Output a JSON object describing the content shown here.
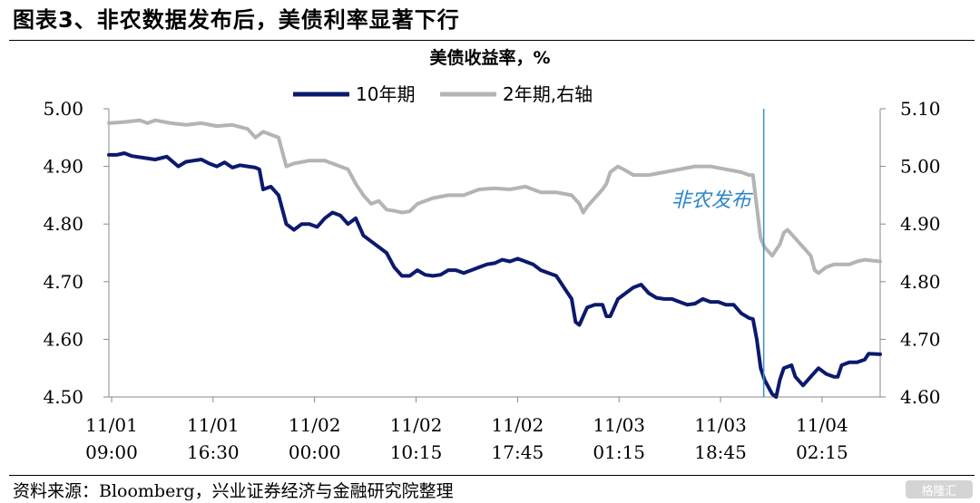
{
  "figure_title": "图表3、非农数据发布后，美债利率显著下行",
  "source_note": "资料来源：Bloomberg，兴业证券经济与金融研究院整理",
  "watermark": "格隆汇",
  "chart_data": {
    "type": "line",
    "title": "美债收益率，%",
    "x_ticks": [
      {
        "top": "11/01",
        "bottom": "09:00"
      },
      {
        "top": "11/01",
        "bottom": "16:30"
      },
      {
        "top": "11/02",
        "bottom": "00:00"
      },
      {
        "top": "11/02",
        "bottom": "10:15"
      },
      {
        "top": "11/02",
        "bottom": "17:45"
      },
      {
        "top": "11/03",
        "bottom": "01:15"
      },
      {
        "top": "11/03",
        "bottom": "18:45"
      },
      {
        "top": "11/04",
        "bottom": "02:15"
      }
    ],
    "y_left": {
      "ticks": [
        "4.50",
        "4.60",
        "4.70",
        "4.80",
        "4.90",
        "5.00"
      ],
      "lim": [
        4.5,
        5.0
      ]
    },
    "y_right": {
      "ticks": [
        "4.60",
        "4.70",
        "4.80",
        "4.90",
        "5.00",
        "5.10"
      ],
      "lim": [
        4.6,
        5.1
      ]
    },
    "annotation": {
      "text": "非农发布",
      "x_fraction": 0.849
    },
    "grid": false,
    "legend_position": "top-center",
    "series": [
      {
        "name": "10年期",
        "axis": "left",
        "color": "#0b1a6e",
        "points": [
          [
            0,
            4.92
          ],
          [
            0.01,
            4.92
          ],
          [
            0.02,
            4.923
          ],
          [
            0.03,
            4.918
          ],
          [
            0.045,
            4.915
          ],
          [
            0.06,
            4.912
          ],
          [
            0.075,
            4.917
          ],
          [
            0.09,
            4.9
          ],
          [
            0.1,
            4.908
          ],
          [
            0.11,
            4.91
          ],
          [
            0.12,
            4.912
          ],
          [
            0.13,
            4.905
          ],
          [
            0.14,
            4.9
          ],
          [
            0.15,
            4.907
          ],
          [
            0.16,
            4.898
          ],
          [
            0.17,
            4.902
          ],
          [
            0.18,
            4.9
          ],
          [
            0.19,
            4.898
          ],
          [
            0.195,
            4.895
          ],
          [
            0.2,
            4.86
          ],
          [
            0.21,
            4.865
          ],
          [
            0.22,
            4.85
          ],
          [
            0.23,
            4.8
          ],
          [
            0.24,
            4.79
          ],
          [
            0.25,
            4.8
          ],
          [
            0.26,
            4.8
          ],
          [
            0.27,
            4.795
          ],
          [
            0.28,
            4.81
          ],
          [
            0.29,
            4.82
          ],
          [
            0.3,
            4.815
          ],
          [
            0.31,
            4.8
          ],
          [
            0.32,
            4.81
          ],
          [
            0.33,
            4.78
          ],
          [
            0.34,
            4.77
          ],
          [
            0.35,
            4.76
          ],
          [
            0.36,
            4.75
          ],
          [
            0.37,
            4.725
          ],
          [
            0.38,
            4.71
          ],
          [
            0.39,
            4.71
          ],
          [
            0.4,
            4.72
          ],
          [
            0.41,
            4.712
          ],
          [
            0.42,
            4.71
          ],
          [
            0.43,
            4.712
          ],
          [
            0.44,
            4.72
          ],
          [
            0.45,
            4.72
          ],
          [
            0.46,
            4.715
          ],
          [
            0.47,
            4.72
          ],
          [
            0.48,
            4.725
          ],
          [
            0.49,
            4.73
          ],
          [
            0.5,
            4.732
          ],
          [
            0.51,
            4.738
          ],
          [
            0.52,
            4.735
          ],
          [
            0.53,
            4.74
          ],
          [
            0.54,
            4.735
          ],
          [
            0.55,
            4.73
          ],
          [
            0.56,
            4.72
          ],
          [
            0.57,
            4.715
          ],
          [
            0.58,
            4.71
          ],
          [
            0.585,
            4.7
          ],
          [
            0.59,
            4.69
          ],
          [
            0.6,
            4.67
          ],
          [
            0.605,
            4.63
          ],
          [
            0.61,
            4.625
          ],
          [
            0.62,
            4.655
          ],
          [
            0.63,
            4.66
          ],
          [
            0.64,
            4.66
          ],
          [
            0.645,
            4.64
          ],
          [
            0.65,
            4.64
          ],
          [
            0.66,
            4.67
          ],
          [
            0.67,
            4.68
          ],
          [
            0.68,
            4.69
          ],
          [
            0.69,
            4.695
          ],
          [
            0.7,
            4.68
          ],
          [
            0.71,
            4.672
          ],
          [
            0.72,
            4.67
          ],
          [
            0.73,
            4.67
          ],
          [
            0.74,
            4.665
          ],
          [
            0.75,
            4.66
          ],
          [
            0.76,
            4.662
          ],
          [
            0.77,
            4.67
          ],
          [
            0.78,
            4.665
          ],
          [
            0.79,
            4.665
          ],
          [
            0.8,
            4.66
          ],
          [
            0.81,
            4.66
          ],
          [
            0.82,
            4.645
          ],
          [
            0.83,
            4.637
          ],
          [
            0.835,
            4.635
          ],
          [
            0.84,
            4.6
          ],
          [
            0.845,
            4.55
          ],
          [
            0.85,
            4.53
          ],
          [
            0.86,
            4.505
          ],
          [
            0.865,
            4.5
          ],
          [
            0.87,
            4.53
          ],
          [
            0.875,
            4.55
          ],
          [
            0.885,
            4.555
          ],
          [
            0.89,
            4.535
          ],
          [
            0.9,
            4.52
          ],
          [
            0.91,
            4.535
          ],
          [
            0.92,
            4.55
          ],
          [
            0.93,
            4.54
          ],
          [
            0.94,
            4.535
          ],
          [
            0.945,
            4.535
          ],
          [
            0.95,
            4.555
          ],
          [
            0.96,
            4.56
          ],
          [
            0.97,
            4.56
          ],
          [
            0.98,
            4.565
          ],
          [
            0.985,
            4.575
          ],
          [
            1.0,
            4.574
          ]
        ]
      },
      {
        "name": "2年期,右轴",
        "axis": "right",
        "color": "#b4b4b4",
        "points": [
          [
            0,
            5.075
          ],
          [
            0.02,
            5.077
          ],
          [
            0.04,
            5.08
          ],
          [
            0.05,
            5.075
          ],
          [
            0.06,
            5.08
          ],
          [
            0.08,
            5.075
          ],
          [
            0.1,
            5.072
          ],
          [
            0.12,
            5.075
          ],
          [
            0.14,
            5.07
          ],
          [
            0.16,
            5.072
          ],
          [
            0.18,
            5.065
          ],
          [
            0.19,
            5.05
          ],
          [
            0.2,
            5.06
          ],
          [
            0.22,
            5.05
          ],
          [
            0.23,
            5.0
          ],
          [
            0.24,
            5.005
          ],
          [
            0.26,
            5.01
          ],
          [
            0.28,
            5.01
          ],
          [
            0.3,
            5.0
          ],
          [
            0.31,
            4.995
          ],
          [
            0.32,
            4.97
          ],
          [
            0.33,
            4.95
          ],
          [
            0.34,
            4.935
          ],
          [
            0.35,
            4.94
          ],
          [
            0.36,
            4.925
          ],
          [
            0.37,
            4.923
          ],
          [
            0.38,
            4.92
          ],
          [
            0.39,
            4.922
          ],
          [
            0.4,
            4.935
          ],
          [
            0.41,
            4.94
          ],
          [
            0.42,
            4.945
          ],
          [
            0.44,
            4.95
          ],
          [
            0.46,
            4.95
          ],
          [
            0.48,
            4.96
          ],
          [
            0.5,
            4.962
          ],
          [
            0.52,
            4.96
          ],
          [
            0.54,
            4.965
          ],
          [
            0.56,
            4.955
          ],
          [
            0.58,
            4.955
          ],
          [
            0.6,
            4.95
          ],
          [
            0.61,
            4.935
          ],
          [
            0.615,
            4.92
          ],
          [
            0.62,
            4.93
          ],
          [
            0.63,
            4.945
          ],
          [
            0.64,
            4.96
          ],
          [
            0.645,
            4.97
          ],
          [
            0.65,
            4.99
          ],
          [
            0.66,
            5.0
          ],
          [
            0.67,
            4.993
          ],
          [
            0.68,
            4.985
          ],
          [
            0.7,
            4.985
          ],
          [
            0.72,
            4.99
          ],
          [
            0.74,
            4.995
          ],
          [
            0.76,
            5.0
          ],
          [
            0.78,
            5.0
          ],
          [
            0.8,
            4.995
          ],
          [
            0.82,
            4.99
          ],
          [
            0.83,
            4.985
          ],
          [
            0.835,
            4.985
          ],
          [
            0.84,
            4.93
          ],
          [
            0.845,
            4.875
          ],
          [
            0.85,
            4.86
          ],
          [
            0.86,
            4.845
          ],
          [
            0.87,
            4.865
          ],
          [
            0.875,
            4.885
          ],
          [
            0.88,
            4.89
          ],
          [
            0.89,
            4.875
          ],
          [
            0.9,
            4.86
          ],
          [
            0.91,
            4.845
          ],
          [
            0.915,
            4.82
          ],
          [
            0.92,
            4.815
          ],
          [
            0.93,
            4.825
          ],
          [
            0.94,
            4.83
          ],
          [
            0.95,
            4.83
          ],
          [
            0.96,
            4.83
          ],
          [
            0.97,
            4.835
          ],
          [
            0.98,
            4.838
          ],
          [
            1.0,
            4.835
          ]
        ]
      }
    ]
  }
}
